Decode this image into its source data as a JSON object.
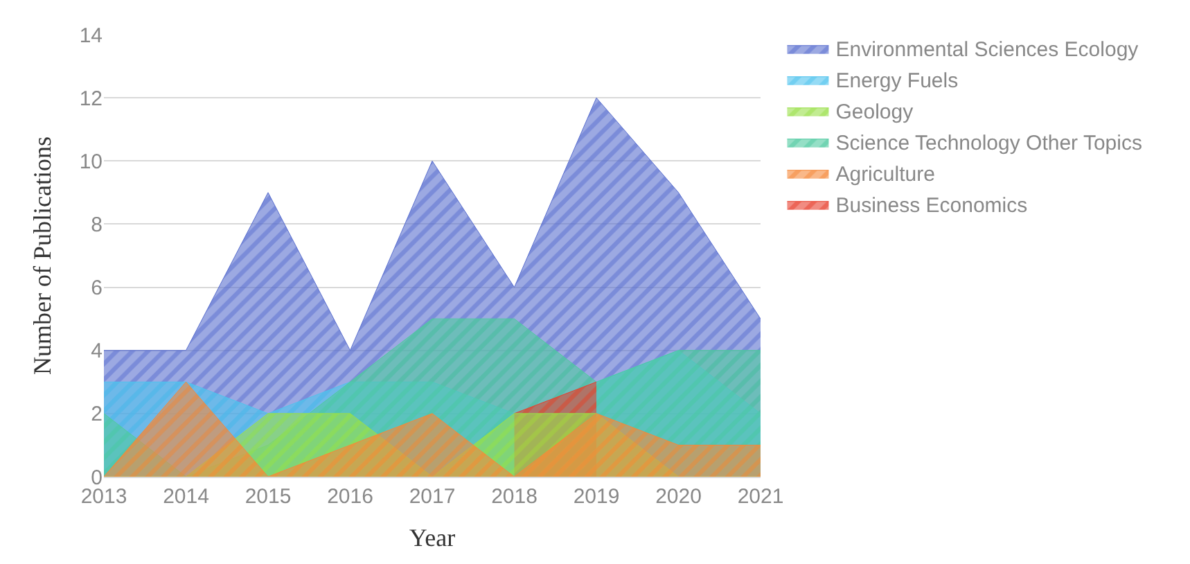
{
  "chart_data": {
    "type": "area",
    "xlabel": "Year",
    "ylabel": "Number of Publications",
    "categories": [
      "2013",
      "2014",
      "2015",
      "2016",
      "2017",
      "2018",
      "2019",
      "2020",
      "2021"
    ],
    "ylim": [
      0,
      14
    ],
    "yticks": [
      0,
      2,
      4,
      6,
      8,
      10,
      12,
      14
    ],
    "grid": "y",
    "legend": "right",
    "series": [
      {
        "name": "Environmental Sciences Ecology",
        "color": "#5a6fcf",
        "values": [
          4,
          4,
          9,
          4,
          10,
          6,
          12,
          9,
          5
        ]
      },
      {
        "name": "Energy Fuels",
        "color": "#4fc3ee",
        "values": [
          3,
          3,
          2,
          3,
          3,
          2,
          3,
          4,
          2
        ]
      },
      {
        "name": "Geology",
        "color": "#9ae04a",
        "values": [
          0,
          0,
          2,
          2,
          0,
          2,
          2,
          0,
          0
        ]
      },
      {
        "name": "Science Technology Other Topics",
        "color": "#4fcaa0",
        "values": [
          2,
          0,
          1,
          3,
          5,
          5,
          3,
          4,
          4
        ]
      },
      {
        "name": "Agriculture",
        "color": "#f5883a",
        "values": [
          0,
          3,
          0,
          1,
          2,
          0,
          2,
          1,
          1
        ]
      },
      {
        "name": "Business Economics",
        "color": "#e8402e",
        "values": [
          null,
          null,
          null,
          null,
          null,
          2,
          3,
          null,
          null
        ]
      }
    ]
  }
}
